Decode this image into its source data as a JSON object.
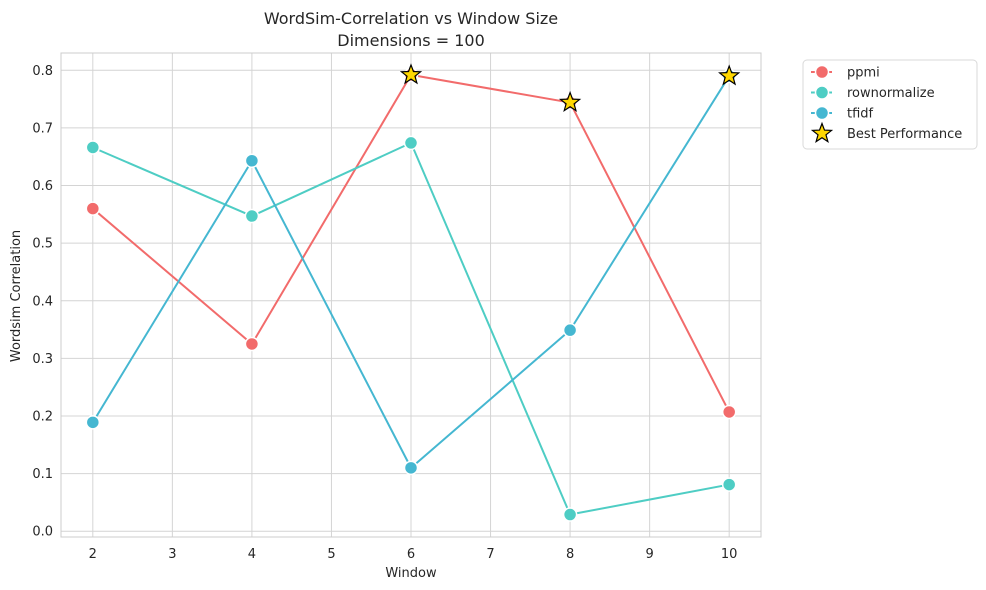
{
  "chart_data": {
    "type": "line",
    "title": "WordSim-Correlation vs Window Size",
    "subtitle": "Dimensions = 100",
    "xlabel": "Window",
    "ylabel": "Wordsim Correlation",
    "xlim": [
      1.6,
      10.4
    ],
    "ylim": [
      -0.01,
      0.83
    ],
    "x_ticks": [
      2,
      3,
      4,
      5,
      6,
      7,
      8,
      9,
      10
    ],
    "y_ticks": [
      0.0,
      0.1,
      0.2,
      0.3,
      0.4,
      0.5,
      0.6,
      0.7,
      0.8
    ],
    "grid": true,
    "legend_position": "outside-top-right",
    "x": [
      2,
      4,
      6,
      8,
      10
    ],
    "series": [
      {
        "name": "ppmi",
        "color": "#F26B6B",
        "values": [
          0.56,
          0.325,
          0.792,
          0.744,
          0.207
        ]
      },
      {
        "name": "rownormalize",
        "color": "#4ECDC4",
        "values": [
          0.666,
          0.547,
          0.674,
          0.029,
          0.081
        ]
      },
      {
        "name": "tfidf",
        "color": "#45B7D1",
        "values": [
          0.189,
          0.643,
          0.11,
          0.349,
          0.79
        ]
      }
    ],
    "best_performance": {
      "name": "Best Performance",
      "color": "#FFD700",
      "points": [
        {
          "x": 6,
          "y": 0.792
        },
        {
          "x": 8,
          "y": 0.744
        },
        {
          "x": 10,
          "y": 0.79
        }
      ]
    }
  }
}
